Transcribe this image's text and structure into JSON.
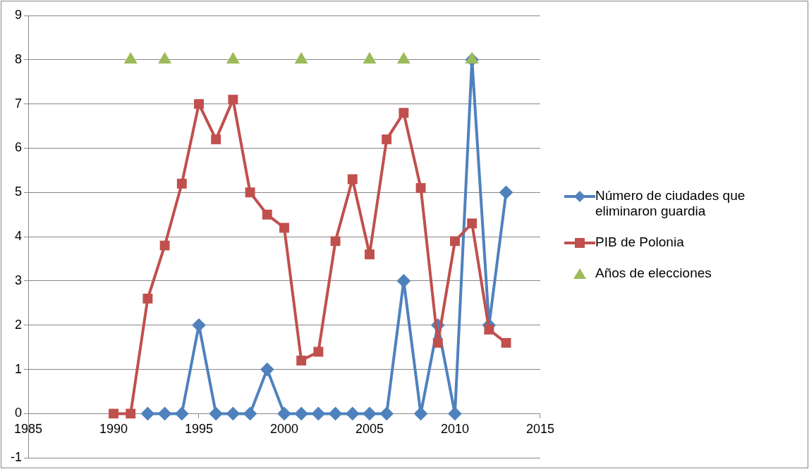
{
  "chart_data": {
    "type": "line",
    "xlim": [
      1985,
      2015
    ],
    "xticks": [
      1985,
      1990,
      1995,
      2000,
      2005,
      2010,
      2015
    ],
    "ylim": [
      -1,
      9
    ],
    "yticks": [
      -1,
      0,
      1,
      2,
      3,
      4,
      5,
      6,
      7,
      8,
      9
    ],
    "grid": "y",
    "legend": "right",
    "line_style": "solid",
    "series": [
      {
        "name": "Número de ciudades que eliminaron guardia",
        "color": "#4f81bd",
        "marker": "diamond",
        "x": [
          1992,
          1993,
          1994,
          1995,
          1996,
          1997,
          1998,
          1999,
          2000,
          2001,
          2002,
          2003,
          2004,
          2005,
          2006,
          2007,
          2008,
          2009,
          2010,
          2011,
          2012,
          2013
        ],
        "values": [
          0,
          0,
          0,
          2,
          0,
          0,
          0,
          1,
          0,
          0,
          0,
          0,
          0,
          0,
          0,
          3,
          0,
          2,
          0,
          8,
          2,
          5
        ]
      },
      {
        "name": "PIB de Polonia",
        "color": "#c0504d",
        "marker": "square",
        "x": [
          1990,
          1991,
          1992,
          1993,
          1994,
          1995,
          1996,
          1997,
          1998,
          1999,
          2000,
          2001,
          2002,
          2003,
          2004,
          2005,
          2006,
          2007,
          2008,
          2009,
          2010,
          2011,
          2012,
          2013
        ],
        "values": [
          0,
          0,
          2.6,
          3.8,
          5.2,
          7.0,
          6.2,
          7.1,
          5.0,
          4.5,
          4.2,
          1.2,
          1.4,
          3.9,
          5.3,
          3.6,
          6.2,
          6.8,
          5.1,
          1.6,
          3.9,
          4.3,
          1.9,
          1.6
        ]
      },
      {
        "name": "Años de elecciones",
        "color": "#9bbb59",
        "marker": "triangle",
        "type": "scatter",
        "x": [
          1991,
          1993,
          1997,
          2001,
          2005,
          2007,
          2011
        ],
        "values": [
          8,
          8,
          8,
          8,
          8,
          8,
          8
        ]
      }
    ]
  }
}
